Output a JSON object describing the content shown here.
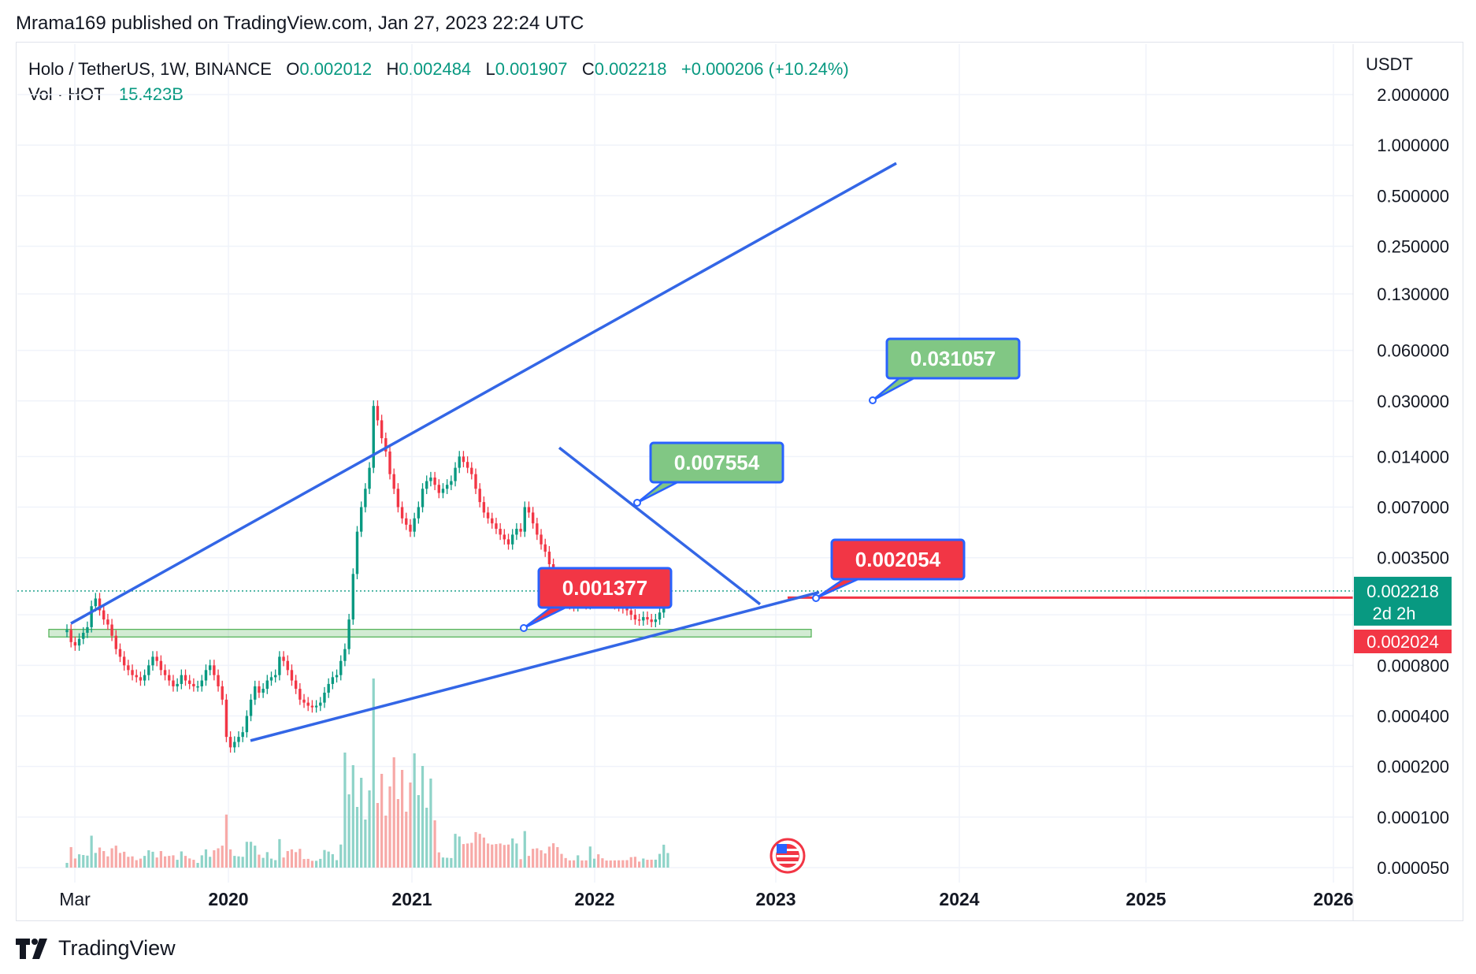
{
  "header": {
    "text": "Mrama169 published on TradingView.com, Jan 27, 2023 22:24 UTC"
  },
  "legend": {
    "symbol": "Holo / TetherUS, 1W, BINANCE",
    "o_label": "O",
    "o_value": "0.002012",
    "h_label": "H",
    "h_value": "0.002484",
    "l_label": "L",
    "l_value": "0.001907",
    "c_label": "C",
    "c_value": "0.002218",
    "change": "+0.000206 (+10.24%)",
    "vol_label": "Vol · HOT",
    "vol_value": "15.423B"
  },
  "footer": {
    "brand": "TradingView"
  },
  "chart_data": {
    "type": "candlestick",
    "scale": "log",
    "currency": "USDT",
    "y_ticks": [
      "2.000000",
      "1.000000",
      "0.500000",
      "0.250000",
      "0.130000",
      "0.060000",
      "0.030000",
      "0.014000",
      "0.007000",
      "0.003500",
      "0.001600",
      "0.000800",
      "0.000400",
      "0.000200",
      "0.000100",
      "0.000050"
    ],
    "x_ticks": [
      "Mar",
      "2020",
      "2021",
      "2022",
      "2023",
      "2024",
      "2025",
      "2026"
    ],
    "last_price": "0.002218",
    "countdown": "2d 2h",
    "red_level": "0.002024",
    "callouts": [
      {
        "label": "0.031057",
        "color": "#81c784",
        "price": 0.031057
      },
      {
        "label": "0.007554",
        "color": "#81c784",
        "price": 0.007554
      },
      {
        "label": "0.002054",
        "color": "#f23645",
        "price": 0.002054
      },
      {
        "label": "0.001377",
        "color": "#f23645",
        "price": 0.001377
      }
    ],
    "support_zone": [
      0.00118,
      0.00131
    ],
    "weekly_closes": [
      0.0013,
      0.0011,
      0.00105,
      0.00115,
      0.00125,
      0.00135,
      0.0018,
      0.002,
      0.0017,
      0.0015,
      0.0014,
      0.0012,
      0.001,
      0.0009,
      0.0008,
      0.00075,
      0.0007,
      0.00068,
      0.00065,
      0.0007,
      0.0008,
      0.0009,
      0.00085,
      0.00075,
      0.0007,
      0.00065,
      0.0006,
      0.00062,
      0.0007,
      0.00065,
      0.00062,
      0.0006,
      0.0006,
      0.00065,
      0.00075,
      0.0008,
      0.0007,
      0.0006,
      0.0005,
      0.0003,
      0.00026,
      0.00028,
      0.0003,
      0.00032,
      0.0004,
      0.0005,
      0.0006,
      0.00055,
      0.00058,
      0.00065,
      0.00068,
      0.0007,
      0.0009,
      0.00085,
      0.00075,
      0.00065,
      0.00058,
      0.0005,
      0.00048,
      0.00046,
      0.00045,
      0.00046,
      0.00048,
      0.00055,
      0.00062,
      0.00068,
      0.0007,
      0.00085,
      0.001,
      0.0015,
      0.0028,
      0.005,
      0.007,
      0.009,
      0.012,
      0.028,
      0.023,
      0.018,
      0.015,
      0.011,
      0.009,
      0.007,
      0.006,
      0.0055,
      0.005,
      0.006,
      0.007,
      0.009,
      0.01,
      0.0105,
      0.0095,
      0.0085,
      0.009,
      0.0095,
      0.01,
      0.012,
      0.014,
      0.013,
      0.012,
      0.011,
      0.009,
      0.0075,
      0.0065,
      0.006,
      0.0056,
      0.0052,
      0.0048,
      0.0045,
      0.0042,
      0.0048,
      0.0052,
      0.005,
      0.007,
      0.0065,
      0.0056,
      0.0048,
      0.0042,
      0.0038,
      0.0032,
      0.0026,
      0.0022,
      0.002,
      0.0019,
      0.00185,
      0.0018,
      0.00195,
      0.0019,
      0.00185,
      0.0022,
      0.0023,
      0.0021,
      0.002,
      0.00195,
      0.0019,
      0.00185,
      0.0018,
      0.00175,
      0.0017,
      0.0016,
      0.0015,
      0.00148,
      0.00155,
      0.0015,
      0.00145,
      0.0015,
      0.00165,
      0.002,
      0.00222
    ]
  }
}
